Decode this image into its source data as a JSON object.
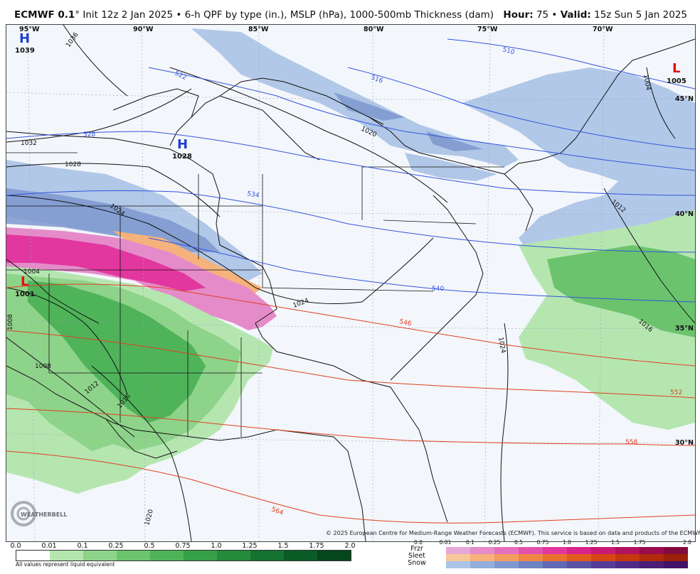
{
  "header": {
    "model": "ECMWF 0.1",
    "run_info": "Init 12z 2 Jan 2025",
    "product": "6-h QPF by type (in.), MSLP (hPa), 1000-500mb Thickness (dam)",
    "hour_label": "Hour:",
    "hour_value": "75",
    "valid_label": "Valid:",
    "valid_value": "15z Sun 5 Jan 2025"
  },
  "map": {
    "longitude_labels": [
      "95°W",
      "90°W",
      "85°W",
      "80°W",
      "75°W",
      "70°W"
    ],
    "latitude_labels": [
      "45°N",
      "40°N",
      "35°N",
      "30°N"
    ],
    "pressure_centers": [
      {
        "type": "H",
        "value": "1039",
        "color": "#1f3fd0"
      },
      {
        "type": "H",
        "value": "1028",
        "color": "#1f3fd0"
      },
      {
        "type": "L",
        "value": "1001",
        "color": "#e01010"
      },
      {
        "type": "L",
        "value": "1005",
        "color": "#e01010"
      }
    ],
    "isobar_labels": [
      "1036",
      "1032",
      "1028",
      "1024",
      "1020",
      "1016",
      "1012",
      "1008",
      "1004",
      "1024",
      "1024",
      "1016",
      "1012",
      "1008",
      "1004",
      "1020"
    ],
    "thickness_labels": [
      "510",
      "516",
      "522",
      "528",
      "534",
      "540",
      "546",
      "552",
      "558",
      "564"
    ],
    "copyright": "© 2025 European Centre for Medium-Range Weather Forecasts (ECMWF). This service is based on data and products of the ECMWF.",
    "logo_text": "WEATHERBELL"
  },
  "legend": {
    "rain_ticks": [
      "0.0",
      "0.01",
      "0.1",
      "0.25",
      "0.5",
      "0.75",
      "1.0",
      "1.25",
      "1.5",
      "1.75",
      "2.0"
    ],
    "rain_colors": [
      "#ffffff",
      "#b5e6b0",
      "#8ed38a",
      "#6cc36d",
      "#4fb35a",
      "#35a048",
      "#238b3b",
      "#157230",
      "#0b5c27",
      "#06461d"
    ],
    "footnote": "All values represent liquid equivalent",
    "ptype_labels": [
      "Frzr",
      "Sleet",
      "Snow"
    ],
    "ptype_ticks": [
      "0.0",
      "0.01",
      "0.1",
      "0.25",
      "0.5",
      "0.75",
      "1.0",
      "1.25",
      "1.5",
      "1.75",
      "2.0"
    ],
    "frzr_colors": [
      "#e6a8d6",
      "#e58bc9",
      "#e46fbd",
      "#e452b0",
      "#e2379f",
      "#d9248b",
      "#c81a74",
      "#b2125f",
      "#9a0c4d",
      "#820a3e"
    ],
    "sleet_colors": [
      "#f7c79a",
      "#f6b27c",
      "#f39c5e",
      "#ef8544",
      "#e96f2e",
      "#e05a1f",
      "#d54714",
      "#c4370f",
      "#b12a0c",
      "#9c1f0a"
    ],
    "snow_colors": [
      "#aac3e6",
      "#93aedb",
      "#7e98cf",
      "#6d82c2",
      "#6169b4",
      "#5a52a6",
      "#543d97",
      "#4f2b87",
      "#4a1d77",
      "#421266"
    ]
  }
}
